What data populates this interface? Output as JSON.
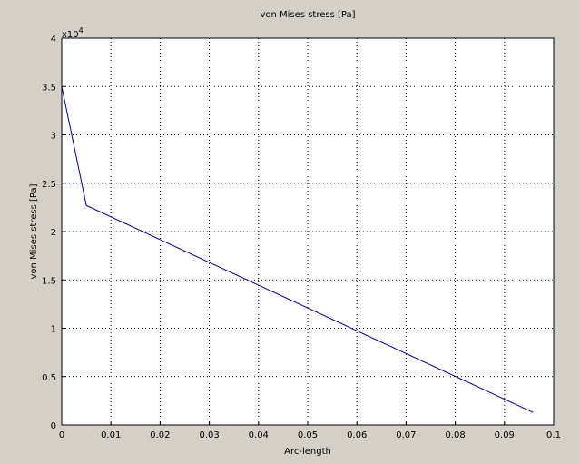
{
  "chart_data": {
    "type": "line",
    "title": "von Mises stress [Pa]",
    "x_label": "Arc-length",
    "y_label": "von Mises stress [Pa]",
    "y_multiplier": {
      "base": "x10",
      "exponent": "4"
    },
    "x": [
      0,
      0.005,
      0.0958
    ],
    "series": [
      {
        "name": "von Mises stress",
        "color": "#0000a0",
        "values": [
          3.5,
          2.27,
          0.13
        ]
      }
    ],
    "xlim": [
      0,
      0.1
    ],
    "xticks": [
      0,
      0.01,
      0.02,
      0.03,
      0.04,
      0.05,
      0.06,
      0.07,
      0.08,
      0.09,
      0.1
    ],
    "ylim": [
      0,
      4
    ],
    "yticks": [
      0,
      0.5,
      1,
      1.5,
      2,
      2.5,
      3,
      3.5,
      4
    ],
    "grid": true
  }
}
